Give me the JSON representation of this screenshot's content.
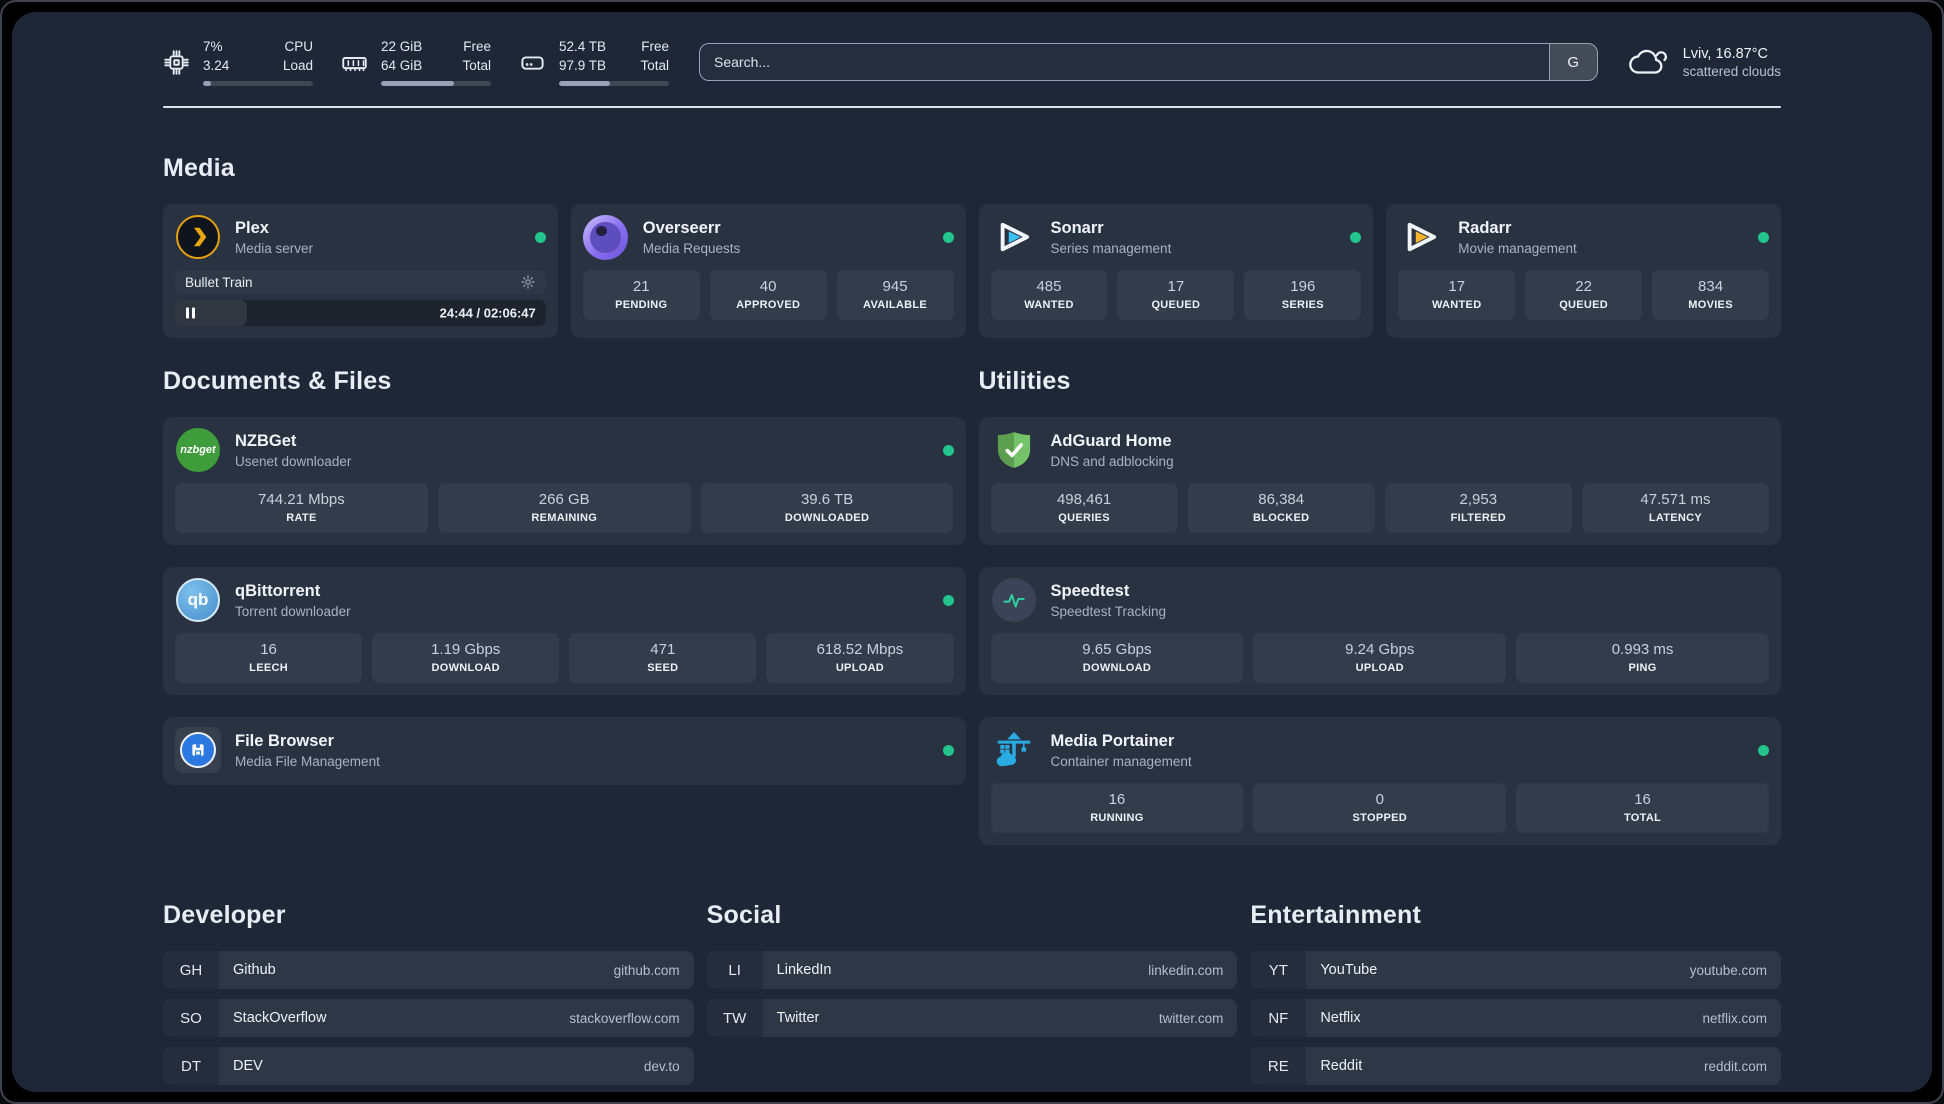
{
  "colors": {
    "status_online": "#21c58c",
    "plex_gold": "#e5a00d",
    "sonarr_blue": "#38c1f1",
    "radarr_amber": "#f5b42c",
    "nzbget_green": "#3e9c3a",
    "qbittorrent_blue": "#478fcc",
    "filebrowser_blue": "#2b79e0",
    "adguard_green": "#74c368",
    "speedtest_pulse": "#2fd3a2",
    "portainer_blue": "#2aabe2"
  },
  "icons": {
    "cpu": "cpu-chip-icon",
    "memory": "ram-stick-icon",
    "disk": "hard-drive-icon",
    "weather": "cloud-icon",
    "settings": "gear-icon",
    "pause": "pause-icon",
    "nzbget_logo_text": "nzbget",
    "qbittorrent_logo_text": "qb"
  },
  "topbar": {
    "resources": [
      {
        "values": [
          "7%",
          "3.24"
        ],
        "labels": [
          "CPU",
          "Load"
        ],
        "progress_pct": 7
      },
      {
        "values": [
          "22 GiB",
          "64 GiB"
        ],
        "labels": [
          "Free",
          "Total"
        ],
        "progress_pct": 66
      },
      {
        "values": [
          "52.4 TB",
          "97.9 TB"
        ],
        "labels": [
          "Free",
          "Total"
        ],
        "progress_pct": 46
      }
    ],
    "search": {
      "placeholder": "Search...",
      "provider_label": "G"
    },
    "weather": {
      "location": "Lviv, 16.87°C",
      "condition": "scattered clouds"
    }
  },
  "media": {
    "title": "Media",
    "plex": {
      "name": "Plex",
      "description": "Media server",
      "online": true,
      "now_playing": {
        "title": "Bullet Train",
        "time": "24:44 / 02:06:47",
        "progress_pct": 19.5,
        "state": "paused"
      }
    },
    "overseerr": {
      "name": "Overseerr",
      "description": "Media Requests",
      "online": true,
      "stats": [
        {
          "value": "21",
          "label": "PENDING"
        },
        {
          "value": "40",
          "label": "APPROVED"
        },
        {
          "value": "945",
          "label": "AVAILABLE"
        }
      ]
    },
    "sonarr": {
      "name": "Sonarr",
      "description": "Series management",
      "online": true,
      "stats": [
        {
          "value": "485",
          "label": "WANTED"
        },
        {
          "value": "17",
          "label": "QUEUED"
        },
        {
          "value": "196",
          "label": "SERIES"
        }
      ]
    },
    "radarr": {
      "name": "Radarr",
      "description": "Movie management",
      "online": true,
      "stats": [
        {
          "value": "17",
          "label": "WANTED"
        },
        {
          "value": "22",
          "label": "QUEUED"
        },
        {
          "value": "834",
          "label": "MOVIES"
        }
      ]
    }
  },
  "documents": {
    "title": "Documents & Files",
    "nzbget": {
      "name": "NZBGet",
      "description": "Usenet downloader",
      "online": true,
      "stats": [
        {
          "value": "744.21 Mbps",
          "label": "RATE"
        },
        {
          "value": "266 GB",
          "label": "REMAINING"
        },
        {
          "value": "39.6 TB",
          "label": "DOWNLOADED"
        }
      ]
    },
    "qbittorrent": {
      "name": "qBittorrent",
      "description": "Torrent downloader",
      "online": true,
      "stats": [
        {
          "value": "16",
          "label": "LEECH"
        },
        {
          "value": "1.19 Gbps",
          "label": "DOWNLOAD"
        },
        {
          "value": "471",
          "label": "SEED"
        },
        {
          "value": "618.52 Mbps",
          "label": "UPLOAD"
        }
      ]
    },
    "filebrowser": {
      "name": "File Browser",
      "description": "Media File Management",
      "online": true
    }
  },
  "utilities": {
    "title": "Utilities",
    "adguard": {
      "name": "AdGuard Home",
      "description": "DNS and adblocking",
      "stats": [
        {
          "value": "498,461",
          "label": "QUERIES"
        },
        {
          "value": "86,384",
          "label": "BLOCKED"
        },
        {
          "value": "2,953",
          "label": "FILTERED"
        },
        {
          "value": "47.571 ms",
          "label": "LATENCY"
        }
      ]
    },
    "speedtest": {
      "name": "Speedtest",
      "description": "Speedtest Tracking",
      "stats": [
        {
          "value": "9.65 Gbps",
          "label": "DOWNLOAD"
        },
        {
          "value": "9.24 Gbps",
          "label": "UPLOAD"
        },
        {
          "value": "0.993 ms",
          "label": "PING"
        }
      ]
    },
    "portainer": {
      "name": "Media Portainer",
      "description": "Container management",
      "online": true,
      "stats": [
        {
          "value": "16",
          "label": "RUNNING"
        },
        {
          "value": "0",
          "label": "STOPPED"
        },
        {
          "value": "16",
          "label": "TOTAL"
        }
      ]
    }
  },
  "bookmarks": {
    "groups": [
      {
        "title": "Developer",
        "items": [
          {
            "abbr": "GH",
            "name": "Github",
            "url": "github.com"
          },
          {
            "abbr": "SO",
            "name": "StackOverflow",
            "url": "stackoverflow.com"
          },
          {
            "abbr": "DT",
            "name": "DEV",
            "url": "dev.to"
          }
        ]
      },
      {
        "title": "Social",
        "items": [
          {
            "abbr": "LI",
            "name": "LinkedIn",
            "url": "linkedin.com"
          },
          {
            "abbr": "TW",
            "name": "Twitter",
            "url": "twitter.com"
          }
        ]
      },
      {
        "title": "Entertainment",
        "items": [
          {
            "abbr": "YT",
            "name": "YouTube",
            "url": "youtube.com"
          },
          {
            "abbr": "NF",
            "name": "Netflix",
            "url": "netflix.com"
          },
          {
            "abbr": "RE",
            "name": "Reddit",
            "url": "reddit.com"
          }
        ]
      }
    ]
  }
}
